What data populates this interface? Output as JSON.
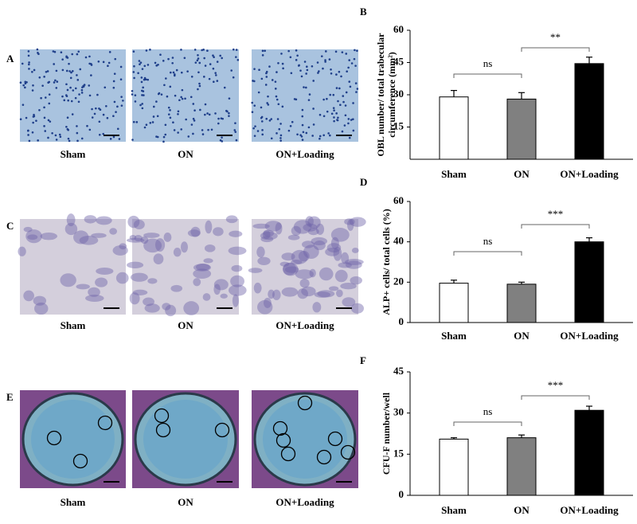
{
  "image_panels": [
    {
      "label": "A",
      "captions": [
        "Sham",
        "ON",
        "ON+Loading"
      ]
    },
    {
      "label": "C",
      "captions": [
        "Sham",
        "ON",
        "ON+Loading"
      ]
    },
    {
      "label": "E",
      "captions": [
        "Sham",
        "ON",
        "ON+Loading"
      ]
    }
  ],
  "chart_data": [
    {
      "type": "bar",
      "panel_label": "B",
      "ylabel": [
        "OBL number/ total trabecular",
        "circumference (mm²)"
      ],
      "categories": [
        "Sham",
        "ON",
        "ON+Loading"
      ],
      "values": [
        29,
        28,
        44.5
      ],
      "errors": [
        3,
        3,
        3
      ],
      "colors": [
        "#ffffff",
        "#808080",
        "#000000"
      ],
      "ylim": [
        0,
        60
      ],
      "yticks": [
        15,
        30,
        45,
        60
      ],
      "annotations": [
        "ns",
        "**"
      ]
    },
    {
      "type": "bar",
      "panel_label": "D",
      "ylabel": [
        "ALP+ cells/ total cells (%)"
      ],
      "categories": [
        "Sham",
        "ON",
        "ON+Loading"
      ],
      "values": [
        19.5,
        19,
        40
      ],
      "errors": [
        1.5,
        1,
        2
      ],
      "colors": [
        "#ffffff",
        "#808080",
        "#000000"
      ],
      "ylim": [
        0,
        60
      ],
      "yticks": [
        0,
        20,
        40,
        60
      ],
      "annotations": [
        "ns",
        "***"
      ]
    },
    {
      "type": "bar",
      "panel_label": "F",
      "ylabel": [
        "CFU-F number/well"
      ],
      "categories": [
        "Sham",
        "ON",
        "ON+Loading"
      ],
      "values": [
        20.5,
        21,
        31
      ],
      "errors": [
        0.5,
        1,
        1.5
      ],
      "colors": [
        "#ffffff",
        "#808080",
        "#000000"
      ],
      "ylim": [
        0,
        45
      ],
      "yticks": [
        0,
        15,
        30,
        45
      ],
      "annotations": [
        "ns",
        "***"
      ]
    }
  ]
}
